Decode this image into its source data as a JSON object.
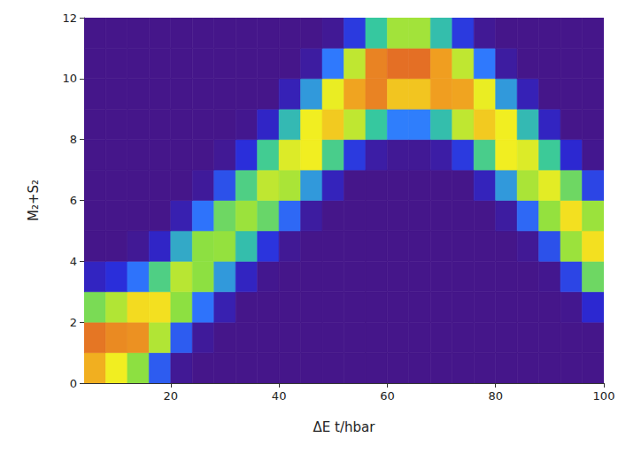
{
  "chart_data": {
    "type": "heatmap",
    "x_label": "ΔE t/hbar",
    "y_label": "M₂+S₂",
    "xlim": [
      4,
      100
    ],
    "xticks": [
      20,
      40,
      60,
      80,
      100
    ],
    "ylim": [
      0,
      12
    ],
    "yticks": [
      0,
      2,
      4,
      6,
      8,
      10,
      12
    ],
    "grid": false,
    "zlim": [
      0,
      1
    ],
    "x": [
      6,
      10,
      14,
      18,
      22,
      26,
      30,
      34,
      38,
      42,
      46,
      50,
      54,
      58,
      62,
      66,
      70,
      74,
      78,
      82,
      86,
      90,
      94,
      98
    ],
    "y": [
      0.5,
      1.5,
      2.5,
      3.5,
      4.5,
      5.5,
      6.5,
      7.5,
      8.5,
      9.5,
      10.5,
      11.5
    ],
    "z": [
      [
        0.83,
        0.71,
        0.57,
        0.23,
        0.02,
        0,
        0,
        0,
        0,
        0,
        0,
        0,
        0,
        0,
        0,
        0,
        0,
        0,
        0,
        0,
        0,
        0,
        0,
        0
      ],
      [
        0.92,
        0.89,
        0.88,
        0.62,
        0.23,
        0.03,
        0,
        0,
        0,
        0,
        0,
        0,
        0,
        0,
        0,
        0,
        0,
        0,
        0,
        0,
        0,
        0,
        0,
        0
      ],
      [
        0.54,
        0.62,
        0.75,
        0.74,
        0.57,
        0.27,
        0.07,
        0,
        0,
        0,
        0,
        0,
        0,
        0,
        0,
        0,
        0,
        0,
        0,
        0,
        0,
        0,
        0.01,
        0.13
      ],
      [
        0.1,
        0.15,
        0.27,
        0.47,
        0.63,
        0.57,
        0.34,
        0.1,
        0.01,
        0,
        0,
        0,
        0,
        0,
        0,
        0,
        0,
        0,
        0,
        0,
        0,
        0.01,
        0.19,
        0.52
      ],
      [
        0,
        0,
        0.02,
        0.11,
        0.37,
        0.57,
        0.58,
        0.41,
        0.16,
        0.02,
        0,
        0,
        0,
        0,
        0,
        0,
        0,
        0,
        0,
        0,
        0.02,
        0.21,
        0.59,
        0.74
      ],
      [
        0,
        0,
        0,
        0,
        0.07,
        0.27,
        0.52,
        0.59,
        0.51,
        0.25,
        0.04,
        0,
        0,
        0,
        0,
        0,
        0,
        0,
        0,
        0.04,
        0.25,
        0.58,
        0.74,
        0.59
      ],
      [
        0,
        0,
        0,
        0,
        0,
        0.03,
        0.21,
        0.47,
        0.64,
        0.61,
        0.34,
        0.09,
        0,
        0,
        0,
        0,
        0,
        0,
        0.09,
        0.34,
        0.61,
        0.69,
        0.52,
        0.19
      ],
      [
        0,
        0,
        0,
        0,
        0,
        0,
        0.02,
        0.15,
        0.45,
        0.68,
        0.71,
        0.46,
        0.17,
        0.05,
        0.02,
        0.02,
        0.05,
        0.17,
        0.46,
        0.71,
        0.68,
        0.44,
        0.13,
        0.01
      ],
      [
        0,
        0,
        0,
        0,
        0,
        0,
        0,
        0.01,
        0.11,
        0.4,
        0.71,
        0.78,
        0.64,
        0.43,
        0.29,
        0.29,
        0.41,
        0.64,
        0.78,
        0.71,
        0.4,
        0.1,
        0,
        0
      ],
      [
        0,
        0,
        0,
        0,
        0,
        0,
        0,
        0,
        0,
        0.08,
        0.34,
        0.7,
        0.85,
        0.9,
        0.79,
        0.79,
        0.86,
        0.85,
        0.7,
        0.34,
        0.08,
        0,
        0,
        0
      ],
      [
        0,
        0,
        0,
        0,
        0,
        0,
        0,
        0,
        0,
        0,
        0.04,
        0.28,
        0.64,
        0.9,
        0.93,
        0.93,
        0.86,
        0.64,
        0.28,
        0.04,
        0,
        0,
        0,
        0
      ],
      [
        0,
        0,
        0,
        0,
        0,
        0,
        0,
        0,
        0,
        0,
        0,
        0.02,
        0.17,
        0.43,
        0.6,
        0.6,
        0.41,
        0.17,
        0.02,
        0,
        0,
        0,
        0,
        0
      ]
    ]
  }
}
